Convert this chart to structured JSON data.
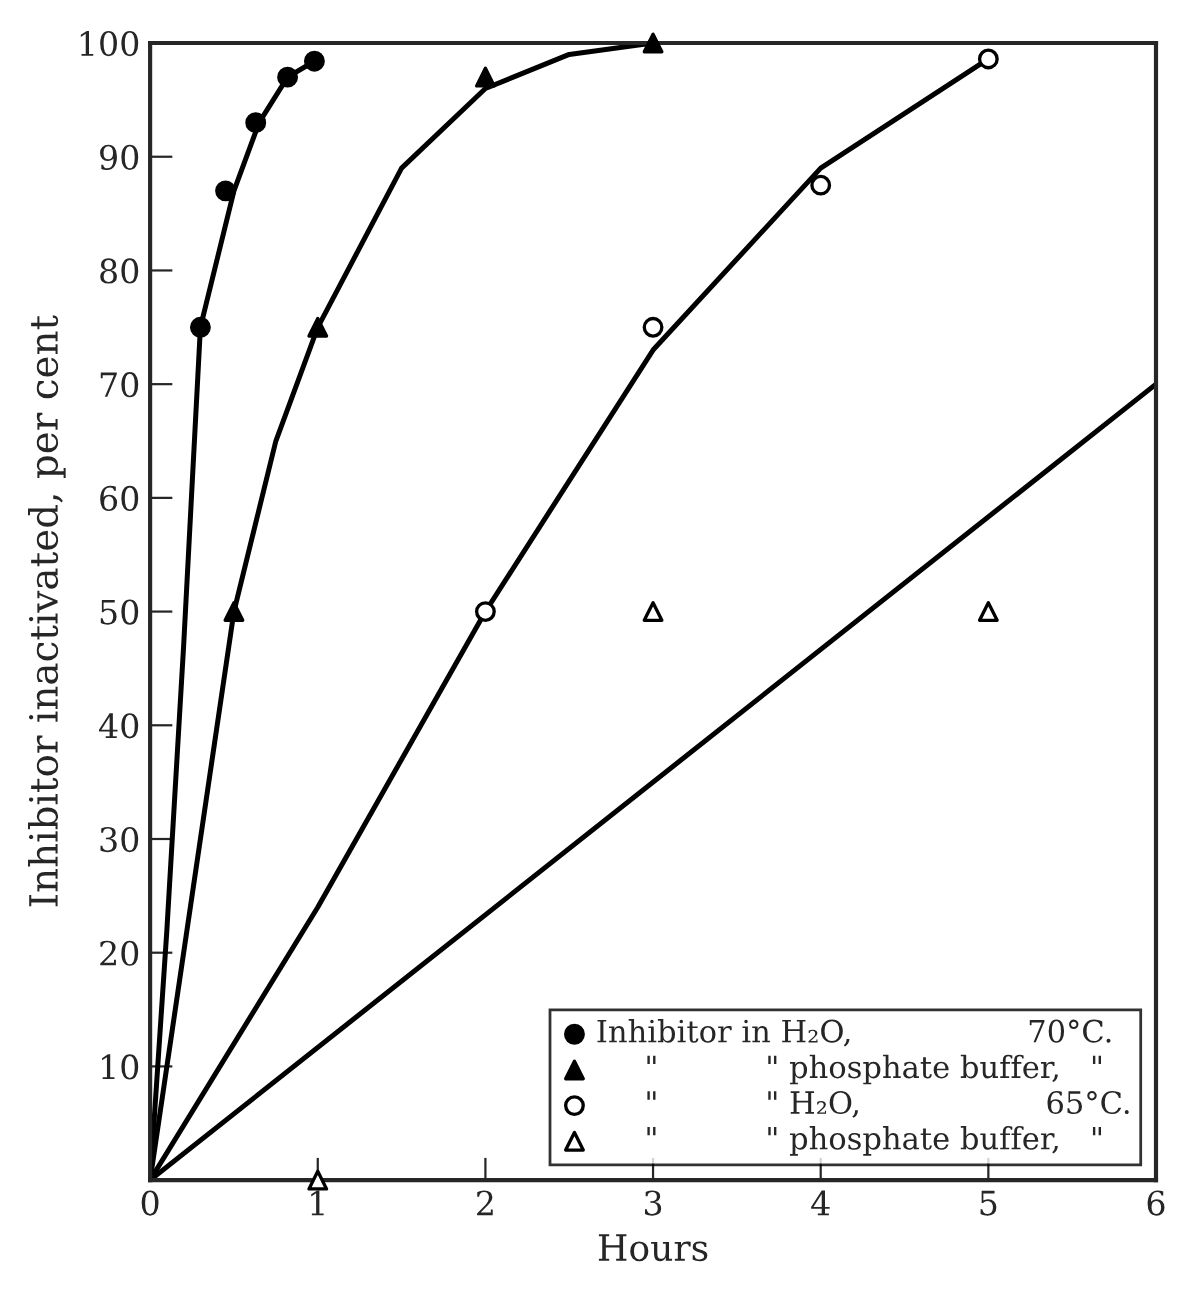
{
  "chart_data": {
    "type": "scatter",
    "xlabel": "Hours",
    "ylabel": "Inhibitor inactivated, per cent",
    "xlim": [
      0,
      6
    ],
    "ylim": [
      0,
      100
    ],
    "xticks": [
      0,
      1,
      2,
      3,
      4,
      5,
      6
    ],
    "yticks": [
      10,
      20,
      30,
      40,
      50,
      60,
      70,
      80,
      90,
      100
    ],
    "legend": "bottom right",
    "grid": false,
    "series": [
      {
        "type": "line",
        "color": "#000000",
        "marker": "none",
        "line_style": "solid",
        "x": [
          0,
          0.1,
          0.2,
          0.3,
          0.5,
          0.65,
          0.82,
          0.98
        ],
        "values": [
          0,
          22,
          47,
          75,
          87,
          93,
          97,
          98.4
        ]
      },
      {
        "type": "line",
        "color": "#000000",
        "marker": "none",
        "line_style": "solid",
        "x": [
          0,
          0.25,
          0.5,
          0.75,
          1,
          1.5,
          2,
          2.5,
          3
        ],
        "values": [
          0,
          25,
          50,
          65,
          75,
          89,
          96,
          99,
          100
        ]
      },
      {
        "type": "line",
        "color": "#000000",
        "marker": "none",
        "line_style": "solid",
        "x": [
          0,
          1,
          2,
          3,
          4,
          5
        ],
        "values": [
          0,
          24,
          50,
          73,
          89,
          98.6
        ]
      },
      {
        "type": "line",
        "color": "#000000",
        "marker": "none",
        "line_style": "solid",
        "x": [
          0,
          6
        ],
        "values": [
          0,
          70
        ]
      },
      {
        "name": "Inhibitor in H₂O,                  70°C.",
        "color": "#000000",
        "marker": "circle",
        "x": [
          0.3,
          0.45,
          0.63,
          0.82,
          0.98
        ],
        "values": [
          75,
          87,
          93,
          97,
          98.4
        ]
      },
      {
        "name": "     \"           \" phosphate buffer,   \"",
        "color": "#000000",
        "marker": "triangle",
        "x": [
          0.5,
          1,
          2,
          3
        ],
        "values": [
          50,
          75,
          97,
          100
        ]
      },
      {
        "name": "     \"           \" H₂O,                   65°C.",
        "color": "#ffffff",
        "marker": "circle",
        "x": [
          2,
          3,
          4,
          5
        ],
        "values": [
          50,
          75,
          87.5,
          98.6
        ]
      },
      {
        "name": "     \"           \" phosphate buffer,   \"",
        "color": "#ffffff",
        "marker": "triangle",
        "x": [
          1,
          3,
          5
        ],
        "values": [
          0,
          50,
          50
        ]
      }
    ]
  }
}
